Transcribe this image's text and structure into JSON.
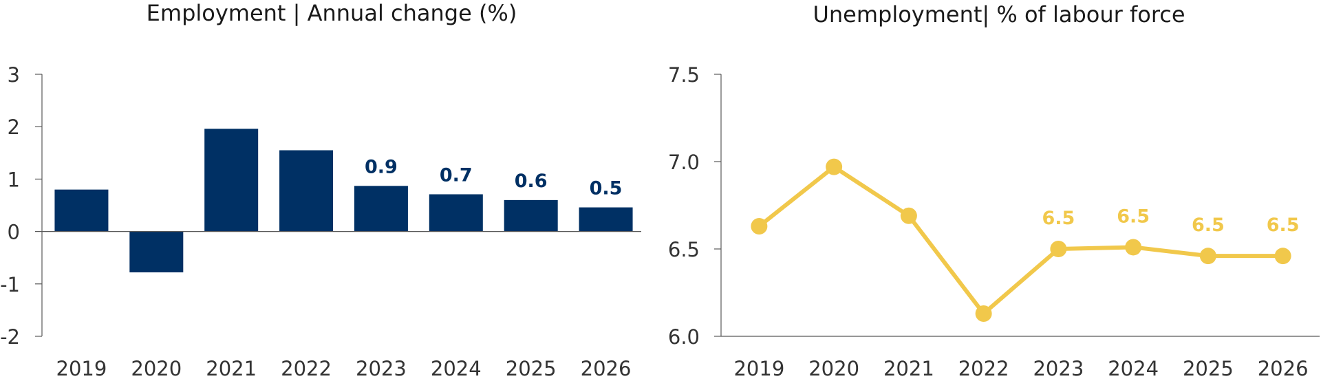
{
  "colors": {
    "bar": "#003064",
    "line": "#F1C84B",
    "axis": "#595959",
    "text": "#1a1a1a"
  },
  "chart_data": [
    {
      "type": "bar",
      "title": "Employment  |  Annual change (%)",
      "categories": [
        "2019",
        "2020",
        "2021",
        "2022",
        "2023",
        "2024",
        "2025",
        "2026"
      ],
      "values": [
        0.8,
        -0.78,
        1.96,
        1.55,
        0.87,
        0.71,
        0.6,
        0.46
      ],
      "data_labels": [
        "",
        "",
        "",
        "",
        "0.9",
        "0.7",
        "0.6",
        "0.5"
      ],
      "ylim": [
        -2,
        3
      ],
      "yticks": [
        3,
        2,
        1,
        0,
        -1,
        -2
      ],
      "ytick_labels": [
        "3",
        "2",
        "1",
        "0",
        "-1",
        "-2"
      ],
      "xlabel": "",
      "ylabel": "",
      "grid": false,
      "legend": "none"
    },
    {
      "type": "line",
      "title": "Unemployment| % of labour force",
      "categories": [
        "2019",
        "2020",
        "2021",
        "2022",
        "2023",
        "2024",
        "2025",
        "2026"
      ],
      "values": [
        6.63,
        6.97,
        6.69,
        6.13,
        6.5,
        6.51,
        6.46,
        6.46
      ],
      "data_labels": [
        "",
        "",
        "",
        "",
        "6.5",
        "6.5",
        "6.5",
        "6.5"
      ],
      "ylim": [
        6.0,
        7.5
      ],
      "yticks": [
        7.5,
        7.0,
        6.5,
        6.0
      ],
      "ytick_labels": [
        "7.5",
        "7.0",
        "6.5",
        "6.0"
      ],
      "xlabel": "",
      "ylabel": "",
      "grid": false,
      "legend": "none"
    }
  ]
}
